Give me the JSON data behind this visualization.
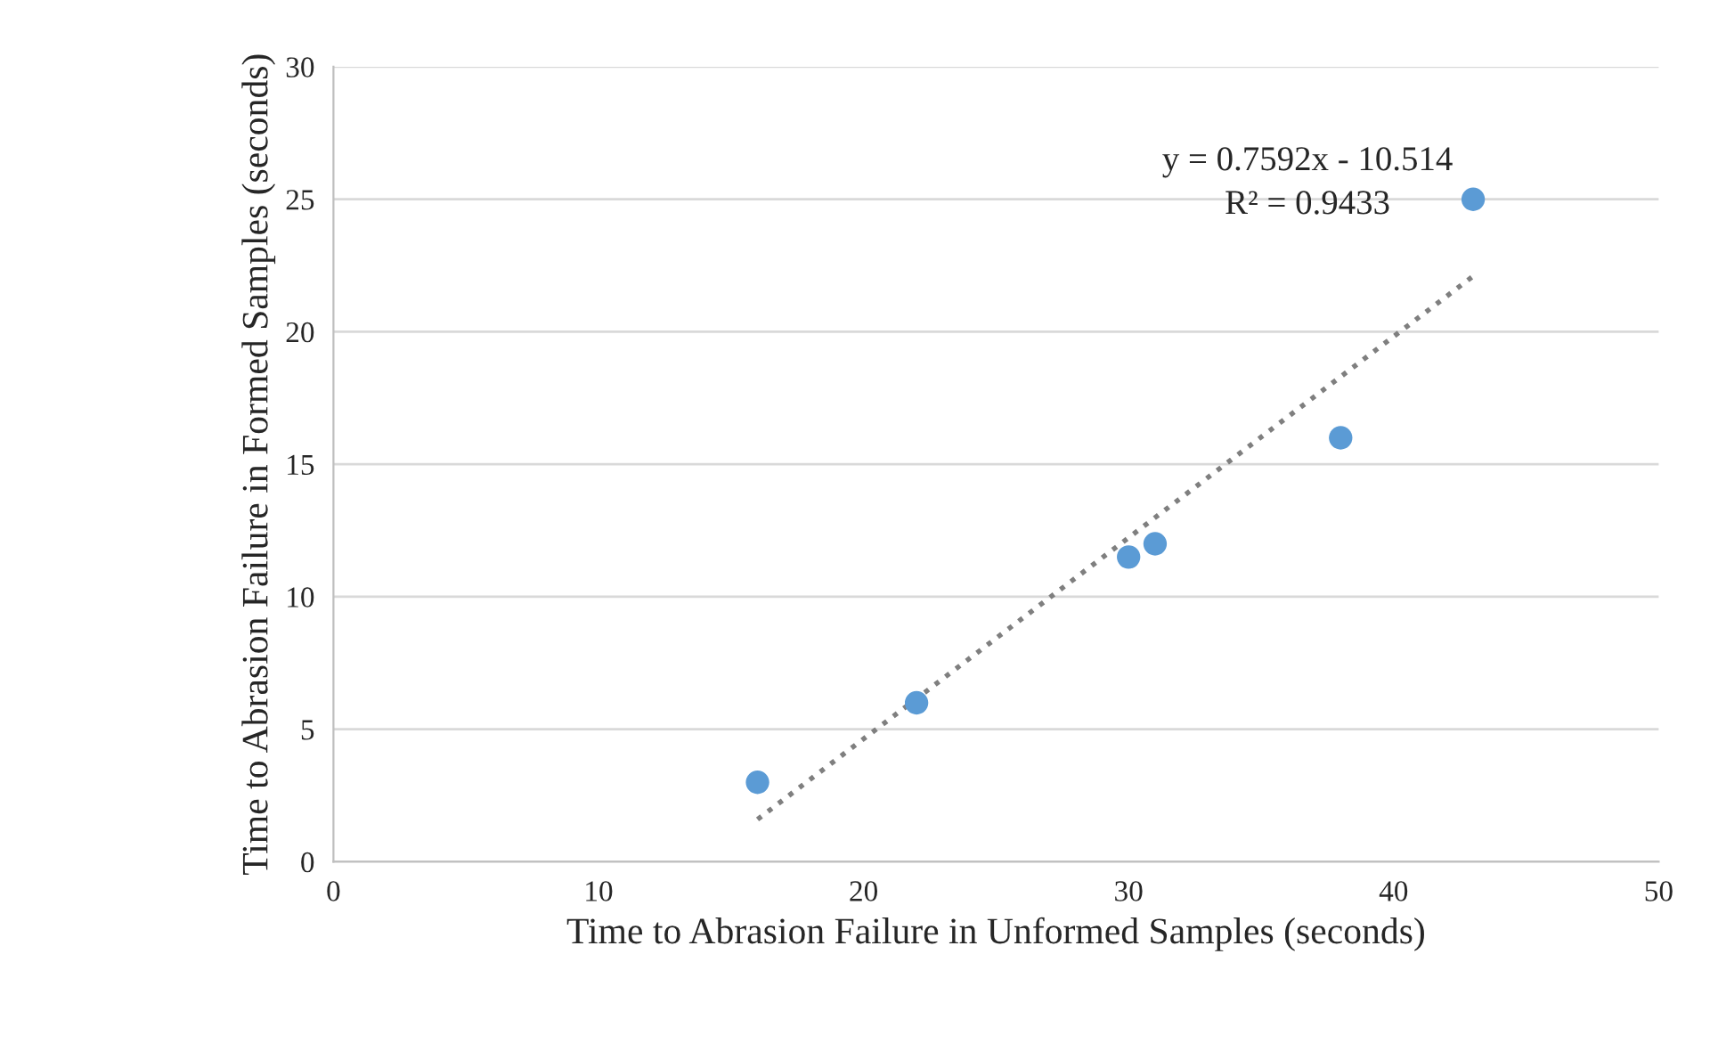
{
  "chart_data": {
    "type": "scatter",
    "xlabel": "Time to Abrasion Failure in Unformed Samples (seconds)",
    "ylabel": "Time to Abrasion Failure in Formed Samples (seconds)",
    "x": [
      16,
      22,
      30,
      31,
      38,
      43
    ],
    "series": [
      {
        "color": "#5b9bd5",
        "marker": "circle",
        "values": [
          3,
          6,
          11.5,
          12,
          16,
          25
        ]
      },
      {
        "type": "line",
        "color": "#7f7f7f",
        "line_style": "dotted",
        "x": [
          16,
          43
        ],
        "values": [
          1.6,
          22.1
        ]
      }
    ],
    "annotations": [
      "y = 0.7592x - 10.514",
      "R² = 0.9433"
    ],
    "xlim": [
      0,
      50
    ],
    "xticks": [
      0,
      10,
      20,
      30,
      40,
      50
    ],
    "ylim": [
      0,
      30
    ],
    "yticks": [
      0,
      5,
      10,
      15,
      20,
      25,
      30
    ],
    "grid": "y"
  }
}
